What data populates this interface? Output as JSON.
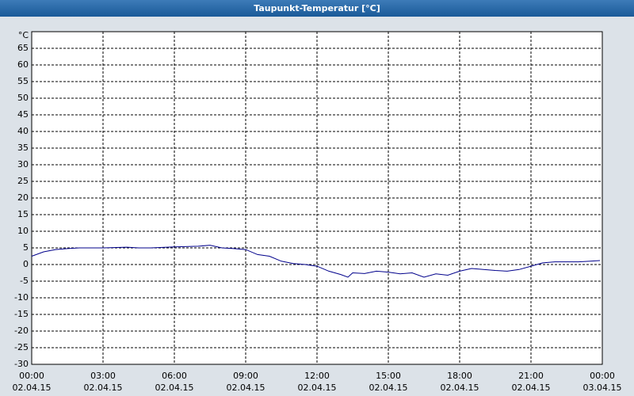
{
  "chart_data": {
    "type": "line",
    "title": "Taupunkt-Temperatur [°C]",
    "y_unit": "°C",
    "x": [
      0,
      0.5,
      1,
      1.5,
      2,
      3,
      4,
      4.5,
      5,
      6,
      7,
      7.5,
      8,
      8.5,
      9,
      9.5,
      10,
      10.5,
      11,
      11.5,
      12,
      12.5,
      13,
      13.3,
      13.5,
      14,
      14.5,
      15,
      15.5,
      16,
      16.5,
      17,
      17.5,
      18,
      18.5,
      19,
      19.5,
      20,
      20.5,
      21,
      21.5,
      22,
      23,
      23.5,
      23.9
    ],
    "series": [
      {
        "name": "Taupunkt",
        "color": "#00008b",
        "values": [
          2.5,
          3.8,
          4.5,
          4.8,
          5,
          5,
          5.2,
          5,
          5,
          5.3,
          5.5,
          5.8,
          5,
          4.8,
          4.5,
          3,
          2.5,
          1,
          0.3,
          0,
          -0.5,
          -2,
          -3,
          -3.8,
          -2.5,
          -2.7,
          -2,
          -2.3,
          -2.8,
          -2.5,
          -3.8,
          -2.8,
          -3.2,
          -2,
          -1.2,
          -1.5,
          -1.8,
          -2,
          -1.5,
          -0.5,
          0.5,
          0.8,
          0.8,
          1,
          1.2
        ]
      }
    ],
    "xlim": [
      0,
      24
    ],
    "ylim": [
      -30,
      70
    ],
    "xticks": [
      {
        "value": 0,
        "label": "00:00",
        "sublabel": "02.04.15"
      },
      {
        "value": 3,
        "label": "03:00",
        "sublabel": "02.04.15"
      },
      {
        "value": 6,
        "label": "06:00",
        "sublabel": "02.04.15"
      },
      {
        "value": 9,
        "label": "09:00",
        "sublabel": "02.04.15"
      },
      {
        "value": 12,
        "label": "12:00",
        "sublabel": "02.04.15"
      },
      {
        "value": 15,
        "label": "15:00",
        "sublabel": "02.04.15"
      },
      {
        "value": 18,
        "label": "18:00",
        "sublabel": "02.04.15"
      },
      {
        "value": 21,
        "label": "21:00",
        "sublabel": "02.04.15"
      },
      {
        "value": 24,
        "label": "00:00",
        "sublabel": "03.04.15"
      }
    ],
    "yticks": [
      -30,
      -25,
      -20,
      -15,
      -10,
      -5,
      0,
      5,
      10,
      15,
      20,
      25,
      30,
      35,
      40,
      45,
      50,
      55,
      60,
      65
    ],
    "grid": true
  }
}
